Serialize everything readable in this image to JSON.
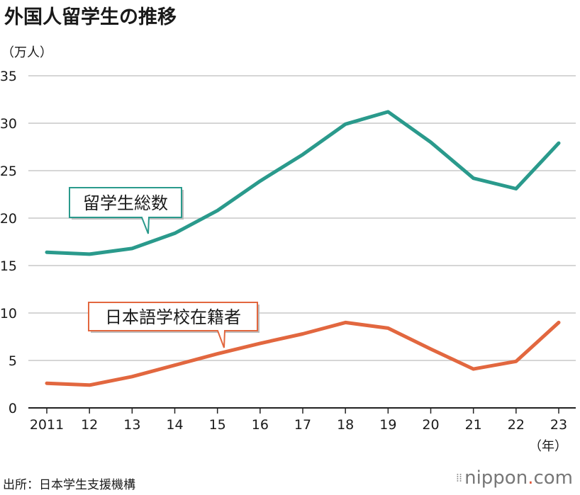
{
  "header": {
    "title": "外国人留学生の推移",
    "y_unit": "（万人）",
    "x_unit": "（年）"
  },
  "footer": {
    "source": "出所：日本学生支援機構",
    "logo_main": "nippon",
    "logo_dot": ".",
    "logo_tld": "com"
  },
  "colors": {
    "total": "#2a9a8c",
    "language": "#e2673f",
    "grid": "#c8c8c8",
    "axis": "#222222"
  },
  "chart_data": {
    "type": "line",
    "title": "外国人留学生の推移",
    "ylabel": "（万人）",
    "xlabel": "（年）",
    "ylim": [
      0,
      35
    ],
    "yticks": [
      0,
      5,
      10,
      15,
      20,
      25,
      30,
      35
    ],
    "grid": true,
    "categories": [
      "2011",
      "12",
      "13",
      "14",
      "15",
      "16",
      "17",
      "18",
      "19",
      "20",
      "21",
      "22",
      "23"
    ],
    "series": [
      {
        "name": "留学生総数",
        "color": "#2a9a8c",
        "values": [
          16.4,
          16.2,
          16.8,
          18.4,
          20.8,
          23.9,
          26.7,
          29.9,
          31.2,
          28.0,
          24.2,
          23.1,
          27.9
        ]
      },
      {
        "name": "日本語学校在籍者",
        "color": "#e2673f",
        "values": [
          2.6,
          2.4,
          3.3,
          4.5,
          5.7,
          6.8,
          7.8,
          9.0,
          8.4,
          6.2,
          4.1,
          4.9,
          9.0
        ]
      }
    ]
  }
}
